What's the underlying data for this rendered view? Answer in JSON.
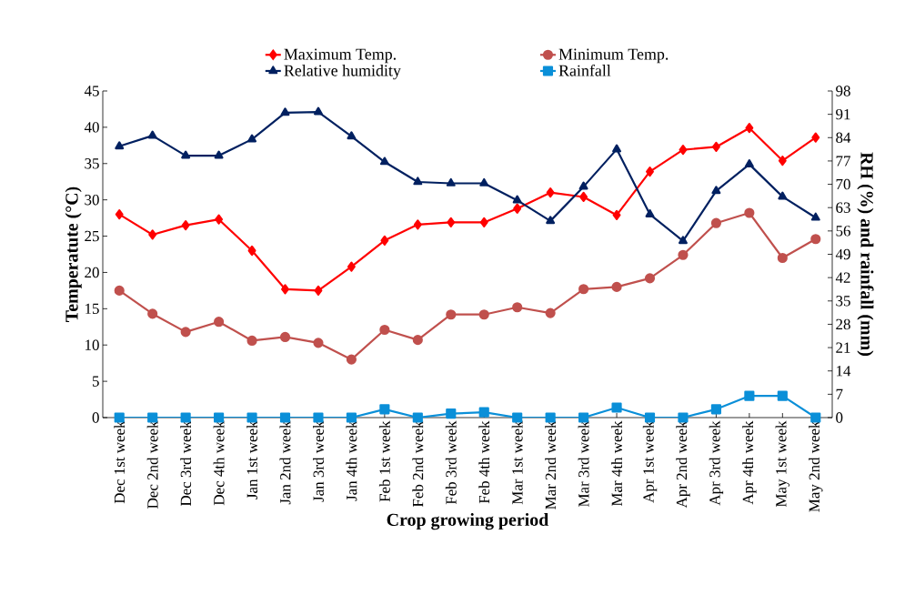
{
  "chart_data": {
    "type": "line",
    "xlabel": "Crop growing period",
    "ylabel": "Temperatute (°C)",
    "y2label": "RH (%) and rainfall (mm)",
    "categories": [
      "Dec 1st week",
      "Dec 2nd week",
      "Dec 3rd week",
      "Dec 4th week",
      "Jan 1st week",
      "Jan 2nd week",
      "Jan 3rd week",
      "Jan 4th week",
      "Feb 1st week",
      "Feb 2nd week",
      "Feb 3rd week",
      "Feb 4th week",
      "Mar 1st week",
      "Mar 2nd week",
      "Mar 3rd week",
      "Mar 4th week",
      "Apr 1st week",
      "Apr 2nd week",
      "Apr 3rd week",
      "Apr 4th week",
      "May 1st week",
      "May 2nd week"
    ],
    "series": [
      {
        "name": "Maximum Temp.",
        "color": "#ff0000",
        "marker": "diamond",
        "values": [
          28.0,
          25.2,
          26.5,
          27.3,
          23.0,
          17.7,
          17.5,
          20.8,
          24.4,
          26.6,
          26.9,
          26.9,
          28.8,
          31.0,
          30.4,
          27.9,
          33.9,
          36.9,
          37.3,
          39.9,
          35.4,
          38.6
        ]
      },
      {
        "name": "Minimum Temp.",
        "color": "#c0504d",
        "marker": "circle",
        "values": [
          17.5,
          14.3,
          11.8,
          13.2,
          10.6,
          11.1,
          10.3,
          8.0,
          12.1,
          10.7,
          14.2,
          14.2,
          15.2,
          14.4,
          17.7,
          18.0,
          19.2,
          22.4,
          26.8,
          28.2,
          22.0,
          24.6
        ]
      },
      {
        "name": "Relative humidity",
        "color": "#002060",
        "marker": "triangle",
        "axis": "y2",
        "values": [
          81.4,
          84.6,
          78.6,
          78.6,
          83.5,
          91.5,
          91.7,
          84.4,
          76.7,
          70.7,
          70.3,
          70.3,
          65.2,
          59.0,
          69.3,
          80.5,
          61.0,
          53.0,
          68.0,
          76.0,
          66.3,
          60.0
        ]
      },
      {
        "name": "Rainfall",
        "color": "#0a8fd8",
        "marker": "square",
        "axis": "y2",
        "values": [
          0,
          0,
          0,
          0,
          0,
          0,
          0,
          0,
          2.5,
          0,
          1.2,
          1.6,
          0,
          0,
          0,
          3.0,
          0,
          0,
          2.5,
          6.5,
          6.5,
          0
        ]
      }
    ],
    "ylim": [
      0,
      45
    ],
    "yticks": [
      0,
      5,
      10,
      15,
      20,
      25,
      30,
      35,
      40,
      45
    ],
    "y2lim": [
      0,
      98
    ],
    "y2ticks": [
      0,
      7,
      14,
      21,
      28,
      35,
      42,
      49,
      56,
      63,
      70,
      77,
      84,
      91,
      98
    ],
    "legend": "top",
    "grid": false
  }
}
